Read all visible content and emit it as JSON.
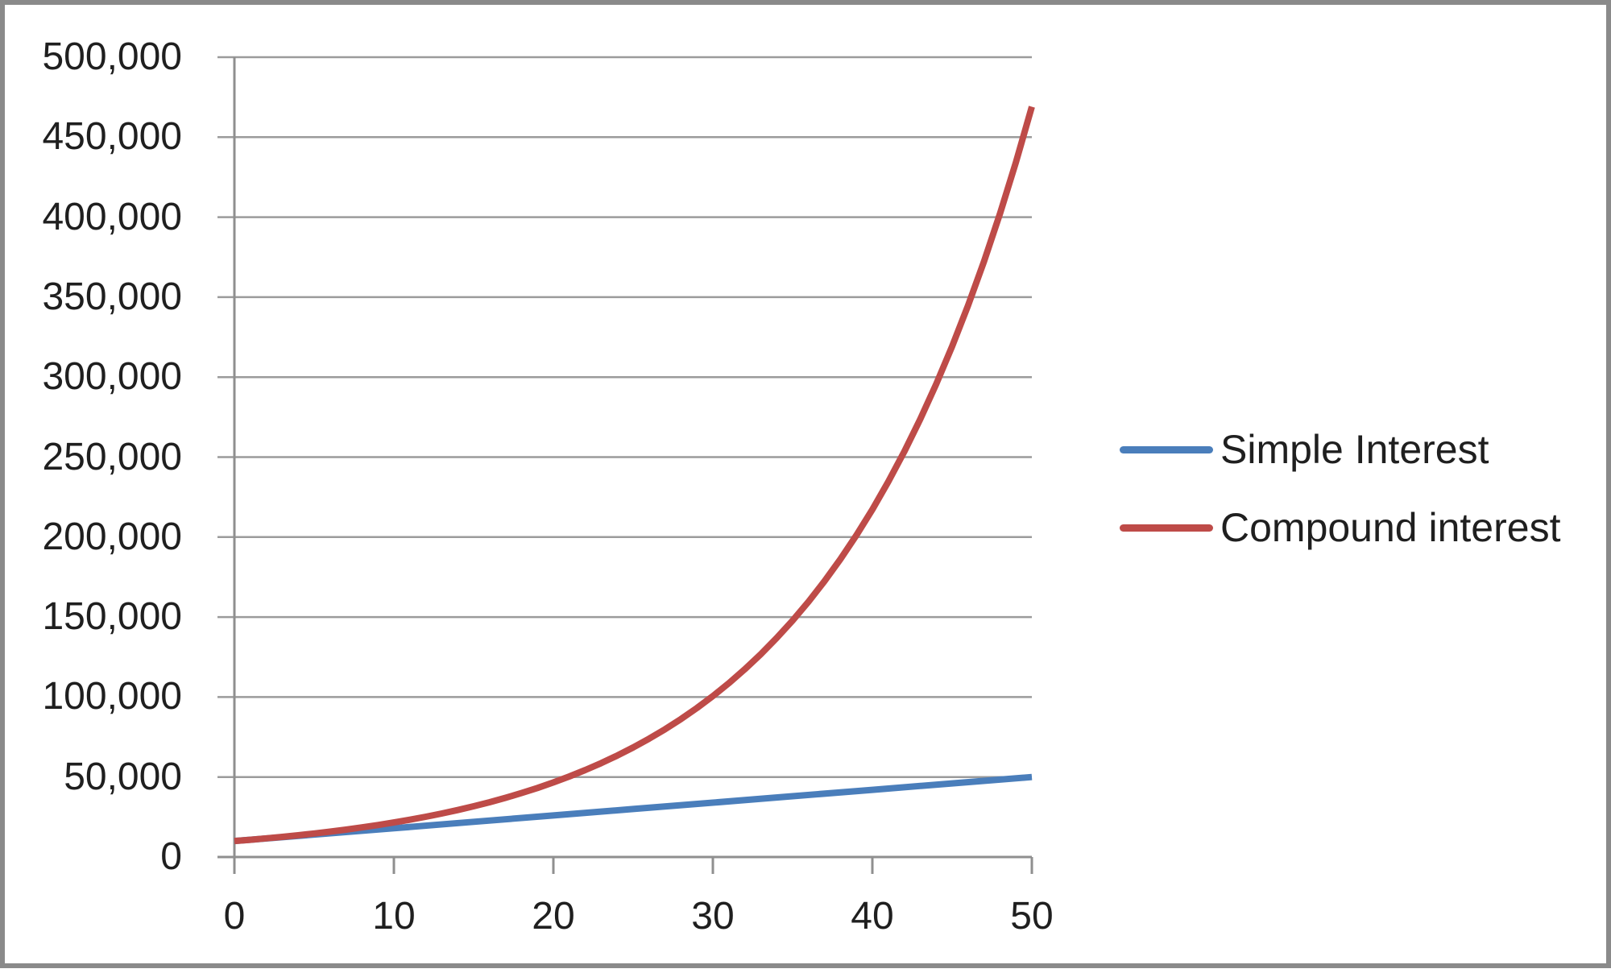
{
  "chart_data": {
    "type": "line",
    "title": "",
    "xlabel": "",
    "ylabel": "",
    "xlim": [
      0,
      50
    ],
    "ylim": [
      0,
      500000
    ],
    "y_tick_interval": 50000,
    "x_ticks": [
      0,
      10,
      20,
      30,
      40,
      50
    ],
    "x_tick_labels": [
      "0",
      "10",
      "20",
      "30",
      "40",
      "50"
    ],
    "y_tick_labels_top_to_bottom": [
      "500,000",
      "450,000",
      "400,000",
      "350,000",
      "300,000",
      "250,000",
      "200,000",
      "150,000",
      "100,000",
      "50,000",
      "0"
    ],
    "grid": "horizontal-gridlines-on",
    "legend_position": "right",
    "colors": {
      "axis": "#8f8f8f",
      "gridline": "#9b9b9b",
      "text": "#1f1f1f",
      "frame_border": "#8a8a8a",
      "background": "#ffffff"
    },
    "series": [
      {
        "name": "Simple Interest",
        "color": "#4A7EBB",
        "line_width": 8,
        "x": [
          0,
          5,
          10,
          15,
          20,
          25,
          30,
          35,
          40,
          45,
          50
        ],
        "values": [
          10000,
          14000,
          18000,
          22000,
          26000,
          30000,
          34000,
          38000,
          42000,
          46000,
          50000
        ]
      },
      {
        "name": "Compound interest",
        "color": "#BE4B48",
        "line_width": 8,
        "x": [
          0,
          1,
          2,
          3,
          4,
          5,
          6,
          7,
          8,
          9,
          10,
          11,
          12,
          13,
          14,
          15,
          16,
          17,
          18,
          19,
          20,
          21,
          22,
          23,
          24,
          25,
          26,
          27,
          28,
          29,
          30,
          31,
          32,
          33,
          34,
          35,
          36,
          37,
          38,
          39,
          40,
          41,
          42,
          43,
          44,
          45,
          46,
          47,
          48,
          49,
          50
        ],
        "values": [
          10000,
          10800,
          11664,
          12597,
          13605,
          14693,
          15869,
          17138,
          18509,
          19990,
          21589,
          23316,
          25182,
          27196,
          29372,
          31722,
          34259,
          37000,
          39960,
          43157,
          46610,
          50338,
          54365,
          58715,
          63412,
          68485,
          73964,
          79881,
          86271,
          93173,
          100627,
          108677,
          117371,
          126760,
          136901,
          147853,
          159682,
          172456,
          186253,
          201153,
          217245,
          234625,
          253395,
          273666,
          295560,
          319204,
          344741,
          372320,
          402106,
          434274,
          469016
        ]
      }
    ]
  }
}
